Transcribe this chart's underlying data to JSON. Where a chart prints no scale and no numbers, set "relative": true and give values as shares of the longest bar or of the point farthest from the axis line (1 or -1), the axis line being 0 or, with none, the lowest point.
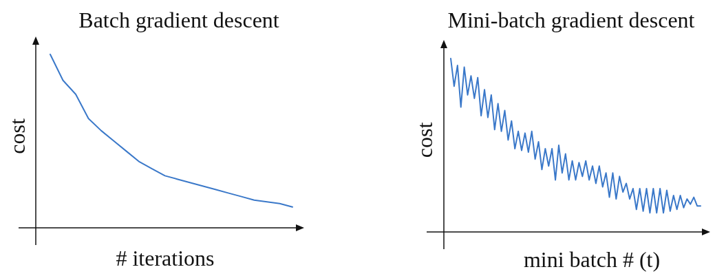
{
  "chart_data": [
    {
      "type": "line",
      "title": "Batch gradient descent",
      "xlabel": "# iterations",
      "ylabel": "cost",
      "relative": true,
      "categories": [
        null,
        null,
        null,
        null,
        null,
        null,
        null,
        null,
        null,
        null,
        null,
        null,
        null,
        null,
        null,
        null,
        null,
        null,
        null,
        null
      ],
      "series": [
        {
          "color": "#3a78c9",
          "values": [
            1.0,
            0.85,
            0.77,
            0.63,
            0.56,
            0.5,
            0.44,
            0.38,
            0.34,
            0.3,
            0.28,
            0.26,
            0.24,
            0.22,
            0.2,
            0.18,
            0.16,
            0.15,
            0.14,
            0.12
          ]
        }
      ]
    },
    {
      "type": "line",
      "title": "Mini-batch gradient descent",
      "xlabel": "mini batch # (t)",
      "ylabel": "cost",
      "relative": true,
      "categories": [
        null,
        null,
        null,
        null,
        null,
        null,
        null,
        null,
        null,
        null,
        null,
        null,
        null,
        null,
        null,
        null,
        null,
        null,
        null,
        null,
        null,
        null,
        null,
        null,
        null,
        null,
        null,
        null,
        null,
        null,
        null,
        null,
        null,
        null,
        null,
        null,
        null,
        null,
        null,
        null,
        null,
        null,
        null,
        null,
        null,
        null,
        null,
        null,
        null,
        null,
        null,
        null,
        null,
        null,
        null,
        null,
        null,
        null,
        null,
        null,
        null,
        null,
        null,
        null,
        null,
        null,
        null,
        null,
        null,
        null,
        null,
        null,
        null,
        null,
        null
      ],
      "series": [
        {
          "color": "#3a78c9",
          "values": [
            1.0,
            0.84,
            0.96,
            0.72,
            0.95,
            0.79,
            0.9,
            0.77,
            0.89,
            0.67,
            0.82,
            0.66,
            0.79,
            0.59,
            0.74,
            0.58,
            0.7,
            0.53,
            0.64,
            0.48,
            0.58,
            0.47,
            0.57,
            0.46,
            0.58,
            0.42,
            0.52,
            0.36,
            0.48,
            0.38,
            0.48,
            0.3,
            0.5,
            0.34,
            0.45,
            0.3,
            0.41,
            0.3,
            0.4,
            0.32,
            0.41,
            0.3,
            0.38,
            0.28,
            0.38,
            0.26,
            0.34,
            0.2,
            0.34,
            0.19,
            0.32,
            0.23,
            0.28,
            0.19,
            0.25,
            0.13,
            0.25,
            0.12,
            0.25,
            0.11,
            0.25,
            0.11,
            0.25,
            0.11,
            0.24,
            0.12,
            0.21,
            0.13,
            0.21,
            0.14,
            0.19,
            0.16,
            0.2,
            0.15,
            0.15
          ]
        }
      ]
    }
  ]
}
